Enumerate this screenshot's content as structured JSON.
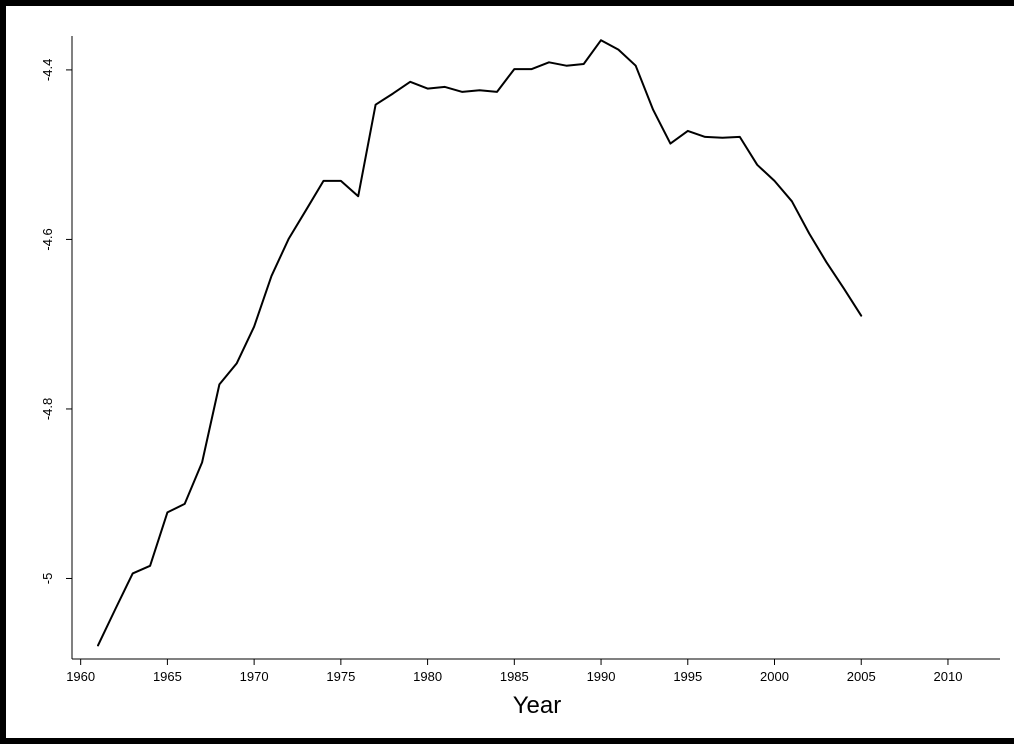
{
  "chart_data": {
    "type": "line",
    "title": "",
    "xlabel": "Year",
    "ylabel": "",
    "xlim": [
      1959.5,
      2013
    ],
    "ylim": [
      -5.095,
      -4.36
    ],
    "x_ticks": [
      1960,
      1965,
      1970,
      1975,
      1980,
      1985,
      1990,
      1995,
      2000,
      2005,
      2010
    ],
    "x_tick_labels": [
      "1960",
      "1965",
      "1970",
      "1975",
      "1980",
      "1985",
      "1990",
      "1995",
      "2000",
      "2005",
      "2010"
    ],
    "y_ticks": [
      -5.0,
      -4.8,
      -4.6,
      -4.4
    ],
    "y_tick_labels": [
      "-5",
      "-4.8",
      "-4.6",
      "-4.4"
    ],
    "grid": false,
    "legend": "none",
    "line_color": "#000000",
    "series": [
      {
        "x": [
          1961,
          1962,
          1963,
          1964,
          1965,
          1966,
          1967,
          1968,
          1969,
          1970,
          1971,
          1972,
          1973,
          1974,
          1975,
          1976,
          1977,
          1978,
          1979,
          1980,
          1981,
          1982,
          1983,
          1984,
          1985,
          1986,
          1987,
          1988,
          1989,
          1990,
          1991,
          1992,
          1993,
          1994,
          1995,
          1996,
          1997,
          1998,
          1999,
          2000,
          2001,
          2002,
          2003,
          2004,
          2005
        ],
        "values": [
          -5.079,
          -5.036,
          -4.994,
          -4.985,
          -4.922,
          -4.912,
          -4.863,
          -4.771,
          -4.746,
          -4.703,
          -4.643,
          -4.599,
          -4.565,
          -4.531,
          -4.531,
          -4.549,
          -4.441,
          -4.428,
          -4.414,
          -4.422,
          -4.42,
          -4.426,
          -4.424,
          -4.426,
          -4.399,
          -4.399,
          -4.391,
          -4.395,
          -4.393,
          -4.365,
          -4.376,
          -4.395,
          -4.447,
          -4.487,
          -4.472,
          -4.479,
          -4.48,
          -4.479,
          -4.512,
          -4.531,
          -4.555,
          -4.593,
          -4.627,
          -4.658,
          -4.69
        ]
      }
    ]
  }
}
